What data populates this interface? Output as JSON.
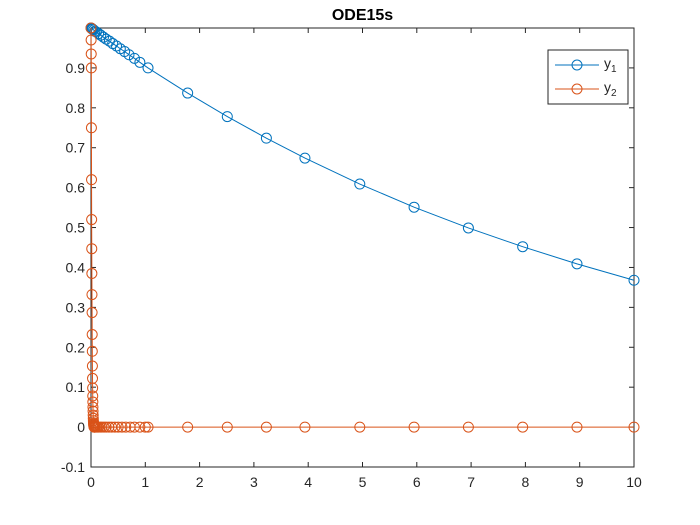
{
  "chart_data": {
    "type": "line",
    "title": "ODE15s",
    "xlabel": "",
    "ylabel": "",
    "xlim": [
      0,
      10
    ],
    "ylim": [
      -0.1,
      1.0
    ],
    "xticks": [
      0,
      1,
      2,
      3,
      4,
      5,
      6,
      7,
      8,
      9,
      10
    ],
    "xtick_labels": [
      "0",
      "1",
      "2",
      "3",
      "4",
      "5",
      "6",
      "7",
      "8",
      "9",
      "10"
    ],
    "yticks": [
      -0.1,
      0,
      0.1,
      0.2,
      0.3,
      0.4,
      0.5,
      0.6,
      0.7,
      0.8,
      0.9
    ],
    "ytick_labels": [
      "-0.1",
      "0",
      "0.1",
      "0.2",
      "0.3",
      "0.4",
      "0.5",
      "0.6",
      "0.7",
      "0.8",
      "0.9"
    ],
    "grid": false,
    "legend_position": "top-right",
    "marker": "circle",
    "series": [
      {
        "name": "y1",
        "name_base": "y",
        "name_sub": "1",
        "color": "#0072BD",
        "x": [
          0,
          0.01,
          0.02,
          0.03,
          0.05,
          0.07,
          0.1,
          0.14,
          0.18,
          0.23,
          0.28,
          0.34,
          0.4,
          0.47,
          0.54,
          0.62,
          0.7,
          0.8,
          0.9,
          1.05,
          1.78,
          2.51,
          3.23,
          3.94,
          4.95,
          5.95,
          6.95,
          7.95,
          8.95,
          10
        ],
        "y": [
          1.0,
          0.999,
          0.998,
          0.997,
          0.995,
          0.992,
          0.99,
          0.986,
          0.982,
          0.977,
          0.972,
          0.967,
          0.961,
          0.955,
          0.948,
          0.941,
          0.933,
          0.924,
          0.914,
          0.9,
          0.837,
          0.778,
          0.724,
          0.674,
          0.609,
          0.551,
          0.499,
          0.452,
          0.409,
          0.368
        ]
      },
      {
        "name": "y2",
        "name_base": "y",
        "name_sub": "2",
        "color": "#D95319",
        "x": [
          0,
          0.002,
          0.004,
          0.006,
          0.008,
          0.01,
          0.012,
          0.014,
          0.016,
          0.018,
          0.02,
          0.022,
          0.024,
          0.026,
          0.028,
          0.03,
          0.032,
          0.034,
          0.036,
          0.038,
          0.04,
          0.042,
          0.044,
          0.046,
          0.048,
          0.05,
          0.052,
          0.054,
          0.056,
          0.058,
          0.06,
          0.065,
          0.07,
          0.08,
          0.1,
          0.12,
          0.14,
          0.17,
          0.2,
          0.24,
          0.28,
          0.33,
          0.38,
          0.44,
          0.5,
          0.57,
          0.64,
          0.72,
          0.8,
          0.9,
          1.0,
          1.05,
          1.78,
          2.51,
          3.23,
          3.94,
          4.95,
          5.95,
          6.95,
          7.95,
          8.95,
          10
        ],
        "y": [
          1.0,
          0.97,
          0.935,
          0.9,
          0.75,
          0.62,
          0.52,
          0.447,
          0.385,
          0.332,
          0.287,
          0.232,
          0.19,
          0.153,
          0.122,
          0.098,
          0.078,
          0.063,
          0.05,
          0.04,
          0.03,
          0.022,
          0.016,
          0.011,
          0.008,
          0.005,
          0.003,
          0.002,
          0.001,
          0.0,
          0.0,
          0.0,
          0.0,
          0.0,
          0.0,
          0.0,
          0.0,
          0.0,
          0.0,
          0.0,
          0.0,
          0.0,
          0.0,
          0.0,
          0.0,
          0.0,
          0.0,
          0.0,
          0.0,
          0.0,
          0.0,
          0.0,
          0.0,
          0.0,
          0.0,
          0.0,
          0.0,
          0.0,
          0.0,
          0.0,
          0.0,
          0.0
        ]
      }
    ]
  }
}
